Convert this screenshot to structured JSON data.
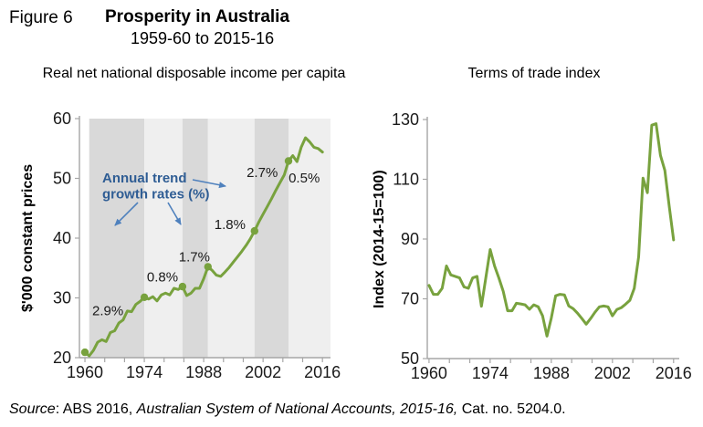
{
  "header": {
    "figure_label": "Figure 6",
    "title": "Prosperity in Australia",
    "subtitle": "1959-60 to 2015-16"
  },
  "source": {
    "label_italic": "Source",
    "segment_regular": ": ABS 2016, ",
    "segment_italic": "Australian System of National Accounts, 2015-16,",
    "segment_end": " Cat. no. 5204.0."
  },
  "chart_data": [
    {
      "type": "line",
      "panel": "left",
      "title": "Real net national disposable income per capita",
      "ylabel": "$'000 constant prices",
      "xlabel": "",
      "xlim": [
        1958.7,
        2017.9
      ],
      "ylim": [
        20,
        60
      ],
      "yticks": [
        20,
        30,
        40,
        50,
        60
      ],
      "xtick_labels": [
        1960,
        1974,
        1988,
        2002,
        2016
      ],
      "grid": false,
      "legend": false,
      "line_color": "#78A23E",
      "axis_color": "#A6A6A6",
      "text_color": "#1a1a1a",
      "x_start": 1960,
      "values": [
        20.9,
        20.3,
        21.2,
        22.6,
        23.0,
        22.7,
        24.2,
        24.5,
        25.8,
        26.3,
        27.8,
        27.7,
        28.9,
        29.4,
        30.1,
        29.8,
        30.2,
        29.5,
        30.5,
        30.8,
        30.5,
        31.6,
        31.4,
        31.9,
        30.4,
        30.8,
        31.6,
        31.6,
        33.2,
        35.2,
        34.6,
        33.8,
        33.6,
        34.3,
        35.1,
        36.0,
        36.9,
        37.8,
        38.8,
        39.9,
        41.2,
        42.7,
        44.0,
        45.3,
        46.6,
        48.0,
        49.3,
        50.6,
        52.9,
        53.8,
        52.8,
        55.2,
        56.8,
        56.1,
        55.2,
        55.0,
        54.4
      ],
      "period_markers": [
        {
          "year": 1960,
          "value": 20.9
        },
        {
          "year": 1974,
          "value": 30.1
        },
        {
          "year": 1983,
          "value": 31.9
        },
        {
          "year": 1989,
          "value": 35.2
        },
        {
          "year": 2000,
          "value": 41.2
        },
        {
          "year": 2008,
          "value": 52.9
        }
      ],
      "bands": [
        {
          "from": 1961,
          "to": 1974,
          "shade": "dark"
        },
        {
          "from": 1974,
          "to": 1983,
          "shade": "light"
        },
        {
          "from": 1983,
          "to": 1989,
          "shade": "dark"
        },
        {
          "from": 1989,
          "to": 2000,
          "shade": "light"
        },
        {
          "from": 2000,
          "to": 2008,
          "shade": "dark"
        },
        {
          "from": 2008,
          "to": 2017.9,
          "shade": "light"
        }
      ],
      "band_colors": {
        "dark": "#D9D9D9",
        "light": "#EFEFEF"
      },
      "growth_rate_labels": [
        {
          "text": "2.9%",
          "year": 1965.4,
          "value": 27.9
        },
        {
          "text": "0.8%",
          "year": 1978.3,
          "value": 33.5
        },
        {
          "text": "1.7%",
          "year": 1985.8,
          "value": 36.9
        },
        {
          "text": "1.8%",
          "year": 1994.2,
          "value": 42.3
        },
        {
          "text": "2.7%",
          "year": 2001.8,
          "value": 51.0
        },
        {
          "text": "0.5%",
          "year": 2011.7,
          "value": 50.1
        }
      ],
      "annotation": {
        "lines": [
          "Annual trend",
          "growth rates (%)"
        ],
        "text_color": "#2F5D94",
        "arrow_color": "#4F81BD"
      }
    },
    {
      "type": "line",
      "panel": "right",
      "title": "Terms of trade index",
      "ylabel": "Index (2014-15=100)",
      "xlabel": "",
      "xlim": [
        1959.6,
        2017.3
      ],
      "ylim": [
        50,
        130
      ],
      "yticks": [
        50,
        70,
        90,
        110,
        130
      ],
      "xtick_labels": [
        1960,
        1974,
        1988,
        2002,
        2016
      ],
      "grid": false,
      "legend": false,
      "line_color": "#78A23E",
      "axis_color": "#A6A6A6",
      "text_color": "#1a1a1a",
      "x_start": 1960,
      "values": [
        74.5,
        71.5,
        71.5,
        73.5,
        81.0,
        78.0,
        77.5,
        77.0,
        74.0,
        73.5,
        77.0,
        77.5,
        67.5,
        77.0,
        86.5,
        81.0,
        77.0,
        72.5,
        66.0,
        66.0,
        68.5,
        68.3,
        68.0,
        66.5,
        68.0,
        67.3,
        64.3,
        57.5,
        63.5,
        71.0,
        71.5,
        71.3,
        67.6,
        66.7,
        65.2,
        63.4,
        61.5,
        63.4,
        65.5,
        67.3,
        67.6,
        67.3,
        64.3,
        66.4,
        67.0,
        68.2,
        69.5,
        73.5,
        84.0,
        110.4,
        105.5,
        128.1,
        128.6,
        118.0,
        113.0,
        101.0,
        89.7
      ]
    }
  ]
}
